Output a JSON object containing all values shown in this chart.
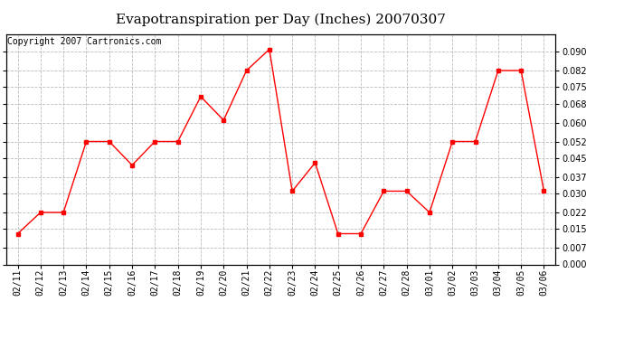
{
  "title": "Evapotranspiration per Day (Inches) 20070307",
  "copyright_text": "Copyright 2007 Cartronics.com",
  "dates": [
    "02/11",
    "02/12",
    "02/13",
    "02/14",
    "02/15",
    "02/16",
    "02/17",
    "02/18",
    "02/19",
    "02/20",
    "02/21",
    "02/22",
    "02/23",
    "02/24",
    "02/25",
    "02/26",
    "02/27",
    "02/28",
    "03/01",
    "03/02",
    "03/03",
    "03/04",
    "03/05",
    "03/06"
  ],
  "values": [
    0.013,
    0.022,
    0.022,
    0.052,
    0.052,
    0.042,
    0.052,
    0.052,
    0.071,
    0.061,
    0.082,
    0.091,
    0.031,
    0.043,
    0.013,
    0.013,
    0.031,
    0.031,
    0.022,
    0.052,
    0.052,
    0.082,
    0.082,
    0.031
  ],
  "line_color": "red",
  "marker": "s",
  "marker_size": 2.5,
  "ylim": [
    0.0,
    0.0975
  ],
  "yticks": [
    0.0,
    0.007,
    0.015,
    0.022,
    0.03,
    0.037,
    0.045,
    0.052,
    0.06,
    0.068,
    0.075,
    0.082,
    0.09
  ],
  "background_color": "#ffffff",
  "grid_color": "#bbbbbb",
  "title_fontsize": 11,
  "copyright_fontsize": 7,
  "tick_fontsize": 7,
  "ylabel_fontsize": 7
}
